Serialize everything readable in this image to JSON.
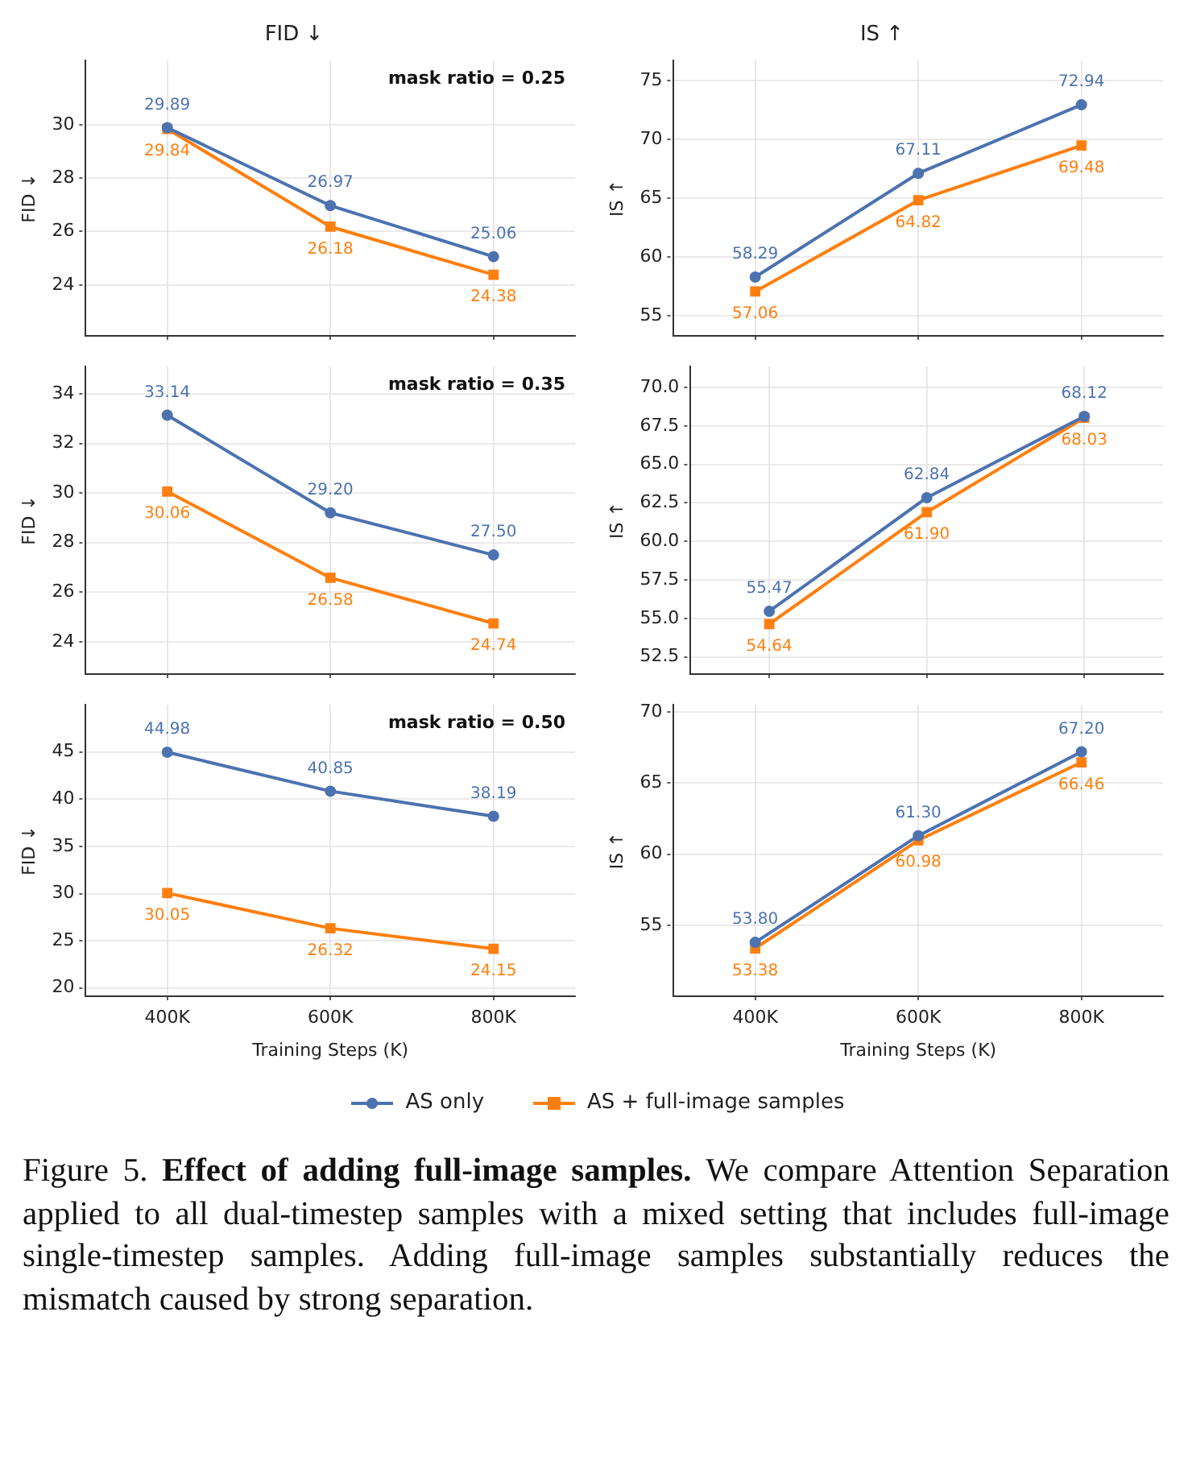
{
  "chart_data": [
    {
      "type": "line",
      "title": "FID ↓",
      "subtitle": "mask ratio = 0.25",
      "ylabel": "FID ↓",
      "categories": [
        "400K",
        "600K",
        "800K"
      ],
      "ylim": [
        22.1,
        32.4
      ],
      "yticks": [
        24,
        26,
        28,
        30
      ],
      "grid": true,
      "legend": "bottom",
      "tick_labels": "y",
      "series": [
        {
          "name": "AS only",
          "color": "#4c72b0",
          "marker": "circle",
          "values": [
            29.89,
            26.97,
            25.06
          ],
          "value_labels": [
            "29.89",
            "26.97",
            "25.06"
          ]
        },
        {
          "name": "AS + full-image samples",
          "color": "#ff7f0e",
          "marker": "square",
          "values": [
            29.84,
            26.18,
            24.38
          ],
          "value_labels": [
            "29.84",
            "26.18",
            "24.38"
          ]
        }
      ]
    },
    {
      "type": "line",
      "title": "IS ↑",
      "ylabel": "IS ↑",
      "categories": [
        "400K",
        "600K",
        "800K"
      ],
      "ylim": [
        53.3,
        76.7
      ],
      "yticks": [
        55,
        60,
        65,
        70,
        75
      ],
      "grid": true,
      "tick_labels": "y",
      "series": [
        {
          "name": "AS only",
          "color": "#4c72b0",
          "marker": "circle",
          "values": [
            58.29,
            67.11,
            72.94
          ],
          "value_labels": [
            "58.29",
            "67.11",
            "72.94"
          ]
        },
        {
          "name": "AS + full-image samples",
          "color": "#ff7f0e",
          "marker": "square",
          "values": [
            57.06,
            64.82,
            69.48
          ],
          "value_labels": [
            "57.06",
            "64.82",
            "69.48"
          ]
        }
      ]
    },
    {
      "type": "line",
      "subtitle": "mask ratio = 0.35",
      "ylabel": "FID ↓",
      "categories": [
        "400K",
        "600K",
        "800K"
      ],
      "ylim": [
        22.7,
        35.1
      ],
      "yticks": [
        24,
        26,
        28,
        30,
        32,
        34
      ],
      "grid": true,
      "tick_labels": "y",
      "series": [
        {
          "name": "AS only",
          "color": "#4c72b0",
          "marker": "circle",
          "values": [
            33.14,
            29.2,
            27.5
          ],
          "value_labels": [
            "33.14",
            "29.20",
            "27.50"
          ]
        },
        {
          "name": "AS + full-image samples",
          "color": "#ff7f0e",
          "marker": "square",
          "values": [
            30.06,
            26.58,
            24.74
          ],
          "value_labels": [
            "30.06",
            "26.58",
            "24.74"
          ]
        }
      ]
    },
    {
      "type": "line",
      "ylabel": "IS ↑",
      "categories": [
        "400K",
        "600K",
        "800K"
      ],
      "ylim": [
        51.4,
        71.35
      ],
      "yticks": [
        {
          "value": 52.5,
          "label": "52.5"
        },
        {
          "value": 55,
          "label": "55.0"
        },
        {
          "value": 57.5,
          "label": "57.5"
        },
        {
          "value": 60,
          "label": "60.0"
        },
        {
          "value": 62.5,
          "label": "62.5"
        },
        {
          "value": 65,
          "label": "65.0"
        },
        {
          "value": 67.5,
          "label": "67.5"
        },
        {
          "value": 70,
          "label": "70.0"
        }
      ],
      "grid": true,
      "tick_labels": "y",
      "series": [
        {
          "name": "AS only",
          "color": "#4c72b0",
          "marker": "circle",
          "values": [
            55.47,
            62.84,
            68.12
          ],
          "value_labels": [
            "55.47",
            "62.84",
            "68.12"
          ]
        },
        {
          "name": "AS + full-image samples",
          "color": "#ff7f0e",
          "marker": "square",
          "values": [
            54.64,
            61.9,
            68.03
          ],
          "value_labels": [
            "54.64",
            "61.90",
            "68.03"
          ]
        }
      ]
    },
    {
      "type": "line",
      "subtitle": "mask ratio = 0.50",
      "xlabel": "Training Steps (K)",
      "ylabel": "FID ↓",
      "categories": [
        "400K",
        "600K",
        "800K"
      ],
      "ylim": [
        19.1,
        50
      ],
      "yticks": [
        20,
        25,
        30,
        35,
        40,
        45
      ],
      "grid": true,
      "series": [
        {
          "name": "AS only",
          "color": "#4c72b0",
          "marker": "circle",
          "values": [
            44.98,
            40.85,
            38.19
          ],
          "value_labels": [
            "44.98",
            "40.85",
            "38.19"
          ]
        },
        {
          "name": "AS + full-image samples",
          "color": "#ff7f0e",
          "marker": "square",
          "values": [
            30.05,
            26.32,
            24.15
          ],
          "value_labels": [
            "30.05",
            "26.32",
            "24.15"
          ]
        }
      ]
    },
    {
      "type": "line",
      "xlabel": "Training Steps (K)",
      "ylabel": "IS ↑",
      "categories": [
        "400K",
        "600K",
        "800K"
      ],
      "ylim": [
        50,
        70.5
      ],
      "yticks": [
        55,
        60,
        65,
        70
      ],
      "grid": true,
      "annotations": [
        "Figure 5.",
        "Effect of adding full-image samples.",
        "We compare Attention Separation applied to all dual-timestep samples with a mixed setting that includes full-image single-timestep samples. Adding full-image samples substantially reduces the mismatch caused by strong separation."
      ],
      "series": [
        {
          "name": "AS only",
          "color": "#4c72b0",
          "marker": "circle",
          "values": [
            53.8,
            61.3,
            67.2
          ],
          "value_labels": [
            "53.80",
            "61.30",
            "67.20"
          ]
        },
        {
          "name": "AS + full-image samples",
          "color": "#ff7f0e",
          "marker": "square",
          "values": [
            53.38,
            60.98,
            66.46
          ],
          "value_labels": [
            "53.38",
            "60.98",
            "66.46"
          ]
        }
      ]
    }
  ]
}
